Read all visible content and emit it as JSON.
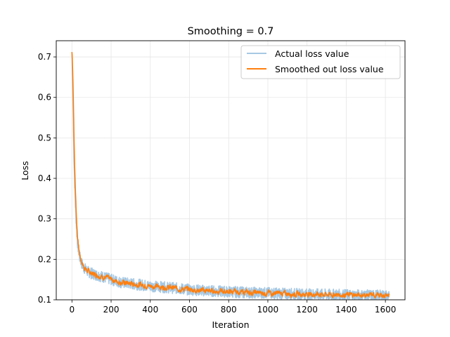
{
  "chart_data": {
    "type": "line",
    "title": "Smoothing = 0.7",
    "xlabel": "Iteration",
    "ylabel": "Loss",
    "xlim": [
      -80,
      1700
    ],
    "ylim": [
      0.1,
      0.74
    ],
    "xticks": [
      0,
      200,
      400,
      600,
      800,
      1000,
      1200,
      1400,
      1600
    ],
    "yticks": [
      0.1,
      0.2,
      0.3,
      0.4,
      0.5,
      0.6,
      0.7
    ],
    "grid": true,
    "legend_position": "upper right",
    "n_points": 1620,
    "series": [
      {
        "name": "Actual loss value",
        "color": "#a6c8e3",
        "trend_x": [
          0,
          5,
          10,
          15,
          20,
          25,
          30,
          40,
          50,
          60,
          80,
          100,
          150,
          200,
          250,
          300,
          350,
          400,
          500,
          600,
          700,
          800,
          900,
          1000,
          1100,
          1200,
          1300,
          1400,
          1500,
          1620
        ],
        "trend_y": [
          0.712,
          0.6,
          0.46,
          0.37,
          0.31,
          0.265,
          0.235,
          0.205,
          0.19,
          0.18,
          0.17,
          0.165,
          0.158,
          0.15,
          0.143,
          0.14,
          0.137,
          0.134,
          0.13,
          0.125,
          0.122,
          0.12,
          0.118,
          0.117,
          0.115,
          0.114,
          0.113,
          0.112,
          0.111,
          0.11
        ],
        "noise_amplitude": 0.014
      },
      {
        "name": "Smoothed out loss value",
        "color": "#ff7f0e",
        "smoothing": 0.7
      }
    ]
  }
}
